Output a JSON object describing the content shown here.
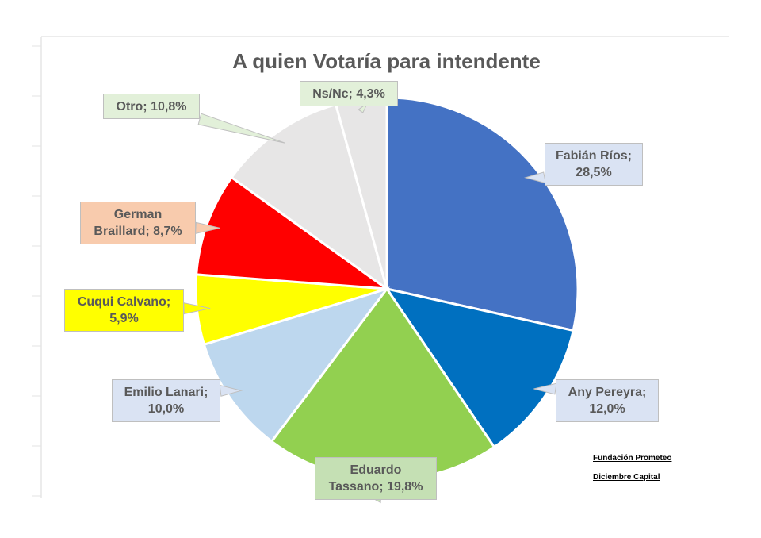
{
  "chart_data": {
    "type": "pie",
    "title": "A quien Votaría para intendente",
    "slices": [
      {
        "name": "Fabián Ríos",
        "value": 28.5,
        "label_line1": "Fabián Ríos;",
        "label_line2": "28,5%",
        "color": "#4472C4",
        "label_bg": "#DAE3F3"
      },
      {
        "name": "Any Pereyra",
        "value": 12.0,
        "label_line1": "Any Pereyra;",
        "label_line2": "12,0%",
        "color": "#0070C0",
        "label_bg": "#DAE3F3"
      },
      {
        "name": "Eduardo Tassano",
        "value": 19.8,
        "label_line1": "Eduardo",
        "label_line2": "Tassano; 19,8%",
        "color": "#92D050",
        "label_bg": "#C5E0B4"
      },
      {
        "name": "Emilio Lanari",
        "value": 10.0,
        "label_line1": "Emilio Lanari;",
        "label_line2": "10,0%",
        "color": "#BDD7EE",
        "label_bg": "#DAE3F3"
      },
      {
        "name": "Cuqui Calvano",
        "value": 5.9,
        "label_line1": "Cuqui Calvano;",
        "label_line2": "5,9%",
        "color": "#FFFF00",
        "label_bg": "#FFFF00"
      },
      {
        "name": "German Braillard",
        "value": 8.7,
        "label_line1": "German",
        "label_line2": "Braillard; 8,7%",
        "color": "#FF0000",
        "label_bg": "#F8CBAD"
      },
      {
        "name": "Otro",
        "value": 10.8,
        "label_line1": "Otro; 10,8%",
        "label_line2": "",
        "color": "#E7E6E6",
        "label_bg": "#E2F0D9"
      },
      {
        "name": "Ns/Nc",
        "value": 4.3,
        "label_line1": "Ns/Nc; 4,3%",
        "label_line2": "",
        "color": "#E7E6E6",
        "label_bg": "#E2F0D9"
      }
    ]
  },
  "notes": {
    "source": "Fundación Prometeo",
    "date": "Diciembre Capital"
  }
}
